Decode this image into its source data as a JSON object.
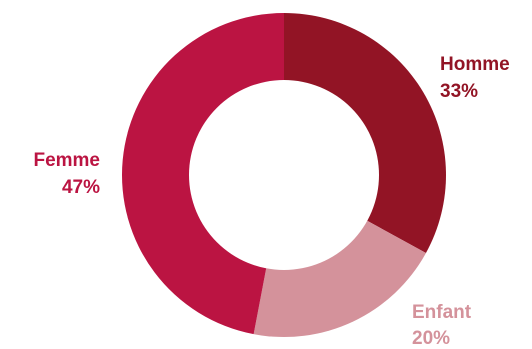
{
  "chart_data": {
    "type": "pie",
    "variant": "donut",
    "slices": [
      {
        "label": "Homme",
        "value": 33,
        "value_label": "33%",
        "color": "#921425"
      },
      {
        "label": "Enfant",
        "value": 20,
        "value_label": "20%",
        "color": "#d4929b"
      },
      {
        "label": "Femme",
        "value": 47,
        "value_label": "47%",
        "color": "#bb1442"
      }
    ],
    "legend": "none",
    "label_placement": "outside"
  }
}
